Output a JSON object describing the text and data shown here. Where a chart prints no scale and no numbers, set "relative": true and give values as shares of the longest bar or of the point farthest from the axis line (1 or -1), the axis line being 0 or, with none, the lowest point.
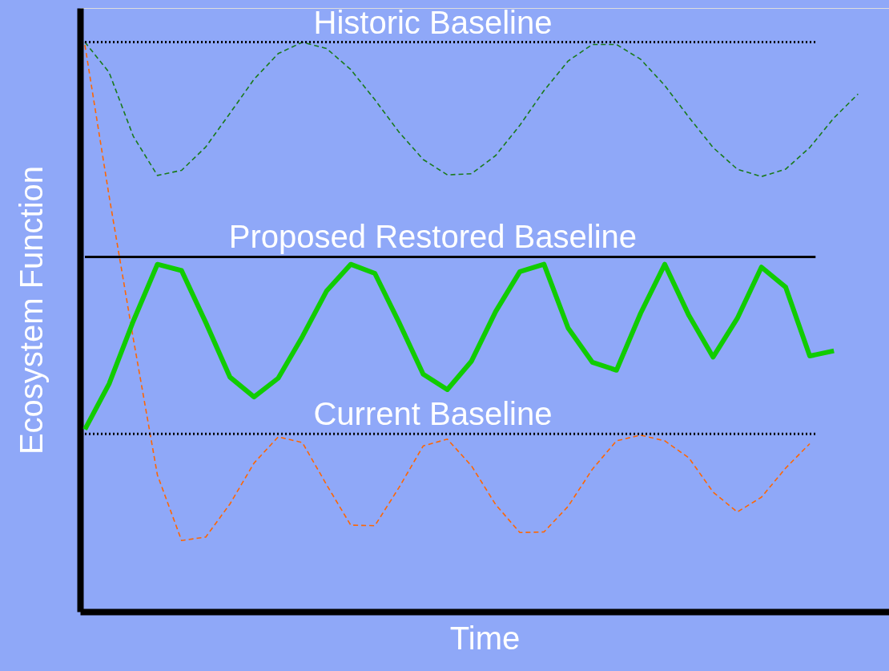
{
  "chart_data": {
    "type": "line",
    "relative": true,
    "xlabel": "Time",
    "ylabel": "Ecosystem Function",
    "grid": false,
    "categories": [
      null,
      null,
      null,
      null,
      null,
      null,
      null,
      null,
      null,
      null,
      null,
      null,
      null,
      null,
      null,
      null,
      null,
      null,
      null,
      null,
      null,
      null,
      null,
      null,
      null,
      null,
      null,
      null,
      null,
      null,
      null,
      null,
      null
    ],
    "series": [
      {
        "color": "#1a7a1a",
        "line_style": "dashed",
        "values": [
          1.0,
          0.947,
          0.835,
          0.766,
          0.775,
          0.816,
          0.875,
          0.935,
          0.98,
          1.0,
          0.989,
          0.952,
          0.899,
          0.842,
          0.794,
          0.767,
          0.769,
          0.801,
          0.854,
          0.915,
          0.967,
          0.996,
          0.996,
          0.97,
          0.924,
          0.868,
          0.815,
          0.777,
          0.764,
          0.777,
          0.815,
          0.867,
          0.909
        ]
      },
      {
        "color": "#ff6600",
        "line_style": "dashed",
        "values": [
          0.995,
          0.73,
          0.48,
          0.24,
          0.125,
          0.131,
          0.189,
          0.261,
          0.307,
          0.297,
          0.223,
          0.152,
          0.151,
          0.218,
          0.291,
          0.303,
          0.256,
          0.188,
          0.139,
          0.14,
          0.185,
          0.25,
          0.3,
          0.31,
          0.3,
          0.27,
          0.21,
          0.175,
          0.201,
          0.252,
          0.295,
          null,
          null
        ]
      },
      {
        "color": "#11cc00",
        "line_style": "solid",
        "values": [
          0.32,
          0.4,
          0.51,
          0.61,
          0.599,
          0.508,
          0.412,
          0.377,
          0.41,
          0.483,
          0.563,
          0.61,
          0.594,
          0.508,
          0.417,
          0.39,
          0.44,
          0.527,
          0.597,
          0.61,
          0.498,
          0.438,
          0.424,
          0.524,
          0.61,
          0.52,
          0.447,
          0.515,
          0.605,
          0.57,
          0.449,
          0.458,
          null
        ]
      }
    ],
    "ref_lines": [
      {
        "axis": "y",
        "value": 1.0,
        "label": "Historic Baseline",
        "color": "#000000",
        "line_style": "dotted"
      },
      {
        "axis": "y",
        "value": 0.623,
        "label": "Proposed Restored Baseline",
        "color": "#000000",
        "line_style": "solid"
      },
      {
        "axis": "y",
        "value": 0.312,
        "label": "Current Baseline",
        "color": "#000000",
        "line_style": "dotted"
      }
    ]
  }
}
